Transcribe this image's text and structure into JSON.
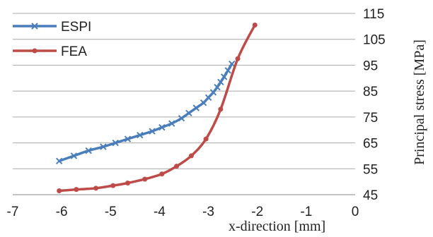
{
  "chart_data": {
    "type": "line",
    "title": "",
    "xlabel": "x-direction [mm]",
    "ylabel": "Principal stress [MPa]",
    "xlim": [
      -7,
      0
    ],
    "ylim": [
      45,
      115
    ],
    "x_ticks": [
      "-7",
      "-6",
      "-5",
      "-4",
      "-3",
      "-2",
      "-1",
      "0"
    ],
    "y_ticks": [
      "45",
      "55",
      "65",
      "75",
      "85",
      "95",
      "105",
      "115"
    ],
    "y_axis_side": "right",
    "grid": "horizontal",
    "legend_position": "top-left",
    "series": [
      {
        "name": "ESPI",
        "color": "#4a7ebb",
        "marker": "x",
        "x": [
          -6.05,
          -5.75,
          -5.45,
          -5.15,
          -4.9,
          -4.65,
          -4.4,
          -4.15,
          -3.95,
          -3.75,
          -3.55,
          -3.4,
          -3.25,
          -3.1,
          -3.0,
          -2.9,
          -2.82,
          -2.75,
          -2.68,
          -2.6,
          -2.52
        ],
        "y": [
          58.0,
          60.0,
          62.0,
          63.5,
          65.0,
          66.5,
          68.0,
          69.5,
          71.0,
          72.5,
          74.5,
          76.5,
          78.5,
          80.5,
          82.5,
          84.5,
          86.5,
          88.5,
          90.5,
          93.0,
          95.5
        ]
      },
      {
        "name": "FEA",
        "color": "#be4b48",
        "marker": "dot",
        "x": [
          -6.05,
          -5.7,
          -5.3,
          -4.95,
          -4.65,
          -4.3,
          -3.95,
          -3.65,
          -3.35,
          -3.05,
          -2.75,
          -2.4,
          -2.05
        ],
        "y": [
          46.5,
          47.0,
          47.5,
          48.5,
          49.5,
          51.0,
          53.0,
          56.0,
          60.0,
          66.5,
          78.0,
          97.5,
          110.5
        ]
      }
    ]
  }
}
